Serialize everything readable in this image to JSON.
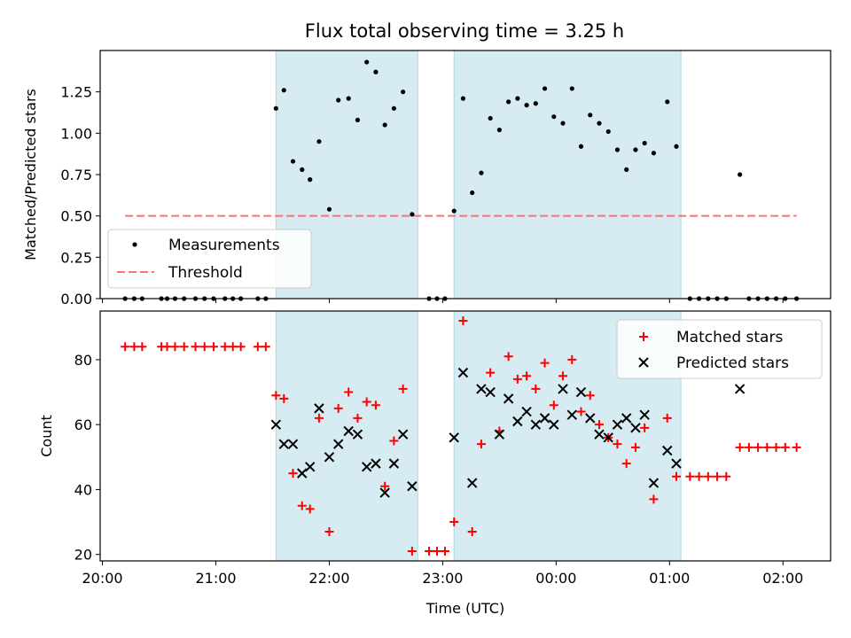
{
  "title": "Flux total observing time = 3.25 h",
  "colors": {
    "measurement": "#000000",
    "threshold": "#ff7070",
    "matched": "#ff0000",
    "predicted": "#000000",
    "span": "#add8e6"
  },
  "chart_data": [
    {
      "type": "scatter",
      "panel": "top",
      "title": "Flux total observing time = 3.25 h",
      "xlabel": "",
      "ylabel": "Matched/Predicted stars",
      "x_range_hours": [
        19.98,
        26.42
      ],
      "ylim": [
        0.0,
        1.5
      ],
      "yticks": [
        0.0,
        0.25,
        0.5,
        0.75,
        1.0,
        1.25
      ],
      "ytick_labels": [
        "0.00",
        "0.25",
        "0.50",
        "0.75",
        "1.00",
        "1.25"
      ],
      "xticks_hours": [
        20,
        21,
        22,
        23,
        24,
        25,
        26
      ],
      "xtick_labels": [],
      "shaded_spans_hours": [
        [
          21.53,
          22.78
        ],
        [
          23.1,
          25.1
        ]
      ],
      "legend": {
        "position": "lower-left",
        "entries": [
          "Measurements",
          "Threshold"
        ]
      },
      "threshold": {
        "name": "Threshold",
        "y": 0.5,
        "x_from": 20.2,
        "x_to": 26.12
      },
      "series": [
        {
          "name": "Measurements",
          "marker": "dot",
          "points": [
            [
              20.2,
              0
            ],
            [
              20.28,
              0
            ],
            [
              20.35,
              0
            ],
            [
              20.52,
              0
            ],
            [
              20.57,
              0
            ],
            [
              20.64,
              0
            ],
            [
              20.72,
              0
            ],
            [
              20.82,
              0
            ],
            [
              20.9,
              0
            ],
            [
              20.98,
              0
            ],
            [
              21.08,
              0
            ],
            [
              21.15,
              0
            ],
            [
              21.22,
              0
            ],
            [
              21.37,
              0
            ],
            [
              21.44,
              0
            ],
            [
              21.53,
              1.15
            ],
            [
              21.6,
              1.26
            ],
            [
              21.68,
              0.83
            ],
            [
              21.76,
              0.78
            ],
            [
              21.83,
              0.72
            ],
            [
              21.91,
              0.95
            ],
            [
              22.0,
              0.54
            ],
            [
              22.08,
              1.2
            ],
            [
              22.17,
              1.21
            ],
            [
              22.25,
              1.08
            ],
            [
              22.33,
              1.43
            ],
            [
              22.41,
              1.37
            ],
            [
              22.49,
              1.05
            ],
            [
              22.57,
              1.15
            ],
            [
              22.65,
              1.25
            ],
            [
              22.73,
              0.51
            ],
            [
              22.88,
              0
            ],
            [
              22.95,
              0
            ],
            [
              23.02,
              0
            ],
            [
              23.1,
              0.53
            ],
            [
              23.18,
              1.21
            ],
            [
              23.26,
              0.64
            ],
            [
              23.34,
              0.76
            ],
            [
              23.42,
              1.09
            ],
            [
              23.5,
              1.02
            ],
            [
              23.58,
              1.19
            ],
            [
              23.66,
              1.21
            ],
            [
              23.74,
              1.17
            ],
            [
              23.82,
              1.18
            ],
            [
              23.9,
              1.27
            ],
            [
              23.98,
              1.1
            ],
            [
              24.06,
              1.06
            ],
            [
              24.14,
              1.27
            ],
            [
              24.22,
              0.92
            ],
            [
              24.3,
              1.11
            ],
            [
              24.38,
              1.06
            ],
            [
              24.46,
              1.01
            ],
            [
              24.54,
              0.9
            ],
            [
              24.62,
              0.78
            ],
            [
              24.7,
              0.9
            ],
            [
              24.78,
              0.94
            ],
            [
              24.86,
              0.88
            ],
            [
              24.98,
              1.19
            ],
            [
              25.06,
              0.92
            ],
            [
              25.18,
              0
            ],
            [
              25.26,
              0
            ],
            [
              25.34,
              0
            ],
            [
              25.42,
              0
            ],
            [
              25.5,
              0
            ],
            [
              25.62,
              0.75
            ],
            [
              25.7,
              0
            ],
            [
              25.78,
              0
            ],
            [
              25.86,
              0
            ],
            [
              25.94,
              0
            ],
            [
              26.02,
              0
            ],
            [
              26.12,
              0
            ]
          ]
        }
      ]
    },
    {
      "type": "scatter",
      "panel": "bottom",
      "xlabel": "Time (UTC)",
      "ylabel": "Count",
      "x_range_hours": [
        19.98,
        26.42
      ],
      "ylim": [
        18,
        95
      ],
      "yticks": [
        20,
        40,
        60,
        80
      ],
      "ytick_labels": [
        "20",
        "40",
        "60",
        "80"
      ],
      "xticks_hours": [
        20,
        21,
        22,
        23,
        24,
        25,
        26
      ],
      "xtick_labels": [
        "20:00",
        "21:00",
        "22:00",
        "23:00",
        "00:00",
        "01:00",
        "02:00"
      ],
      "shaded_spans_hours": [
        [
          21.53,
          22.78
        ],
        [
          23.1,
          25.1
        ]
      ],
      "legend": {
        "position": "top-right",
        "entries": [
          "Matched stars",
          "Predicted stars"
        ]
      },
      "series": [
        {
          "name": "Matched stars",
          "marker": "plus",
          "points": [
            [
              20.2,
              84
            ],
            [
              20.28,
              84
            ],
            [
              20.35,
              84
            ],
            [
              20.52,
              84
            ],
            [
              20.57,
              84
            ],
            [
              20.64,
              84
            ],
            [
              20.72,
              84
            ],
            [
              20.82,
              84
            ],
            [
              20.9,
              84
            ],
            [
              20.98,
              84
            ],
            [
              21.08,
              84
            ],
            [
              21.15,
              84
            ],
            [
              21.22,
              84
            ],
            [
              21.37,
              84
            ],
            [
              21.44,
              84
            ],
            [
              21.53,
              69
            ],
            [
              21.6,
              68
            ],
            [
              21.68,
              45
            ],
            [
              21.76,
              35
            ],
            [
              21.83,
              34
            ],
            [
              21.91,
              62
            ],
            [
              22.0,
              27
            ],
            [
              22.08,
              65
            ],
            [
              22.17,
              70
            ],
            [
              22.25,
              62
            ],
            [
              22.33,
              67
            ],
            [
              22.41,
              66
            ],
            [
              22.49,
              41
            ],
            [
              22.57,
              55
            ],
            [
              22.65,
              71
            ],
            [
              22.73,
              21
            ],
            [
              22.88,
              21
            ],
            [
              22.95,
              21
            ],
            [
              23.02,
              21
            ],
            [
              23.1,
              30
            ],
            [
              23.18,
              92
            ],
            [
              23.26,
              27
            ],
            [
              23.34,
              54
            ],
            [
              23.42,
              76
            ],
            [
              23.5,
              58
            ],
            [
              23.58,
              81
            ],
            [
              23.66,
              74
            ],
            [
              23.74,
              75
            ],
            [
              23.82,
              71
            ],
            [
              23.9,
              79
            ],
            [
              23.98,
              66
            ],
            [
              24.06,
              75
            ],
            [
              24.14,
              80
            ],
            [
              24.22,
              64
            ],
            [
              24.3,
              69
            ],
            [
              24.38,
              60
            ],
            [
              24.46,
              56
            ],
            [
              24.54,
              54
            ],
            [
              24.62,
              48
            ],
            [
              24.7,
              53
            ],
            [
              24.78,
              59
            ],
            [
              24.86,
              37
            ],
            [
              24.98,
              62
            ],
            [
              25.06,
              44
            ],
            [
              25.18,
              44
            ],
            [
              25.26,
              44
            ],
            [
              25.34,
              44
            ],
            [
              25.42,
              44
            ],
            [
              25.5,
              44
            ],
            [
              25.62,
              53
            ],
            [
              25.7,
              53
            ],
            [
              25.78,
              53
            ],
            [
              25.86,
              53
            ],
            [
              25.94,
              53
            ],
            [
              26.02,
              53
            ],
            [
              26.12,
              53
            ]
          ]
        },
        {
          "name": "Predicted stars",
          "marker": "x",
          "points": [
            [
              21.53,
              60
            ],
            [
              21.6,
              54
            ],
            [
              21.68,
              54
            ],
            [
              21.76,
              45
            ],
            [
              21.83,
              47
            ],
            [
              21.91,
              65
            ],
            [
              22.0,
              50
            ],
            [
              22.08,
              54
            ],
            [
              22.17,
              58
            ],
            [
              22.25,
              57
            ],
            [
              22.33,
              47
            ],
            [
              22.41,
              48
            ],
            [
              22.49,
              39
            ],
            [
              22.57,
              48
            ],
            [
              22.65,
              57
            ],
            [
              22.73,
              41
            ],
            [
              23.1,
              56
            ],
            [
              23.18,
              76
            ],
            [
              23.26,
              42
            ],
            [
              23.34,
              71
            ],
            [
              23.42,
              70
            ],
            [
              23.5,
              57
            ],
            [
              23.58,
              68
            ],
            [
              23.66,
              61
            ],
            [
              23.74,
              64
            ],
            [
              23.82,
              60
            ],
            [
              23.9,
              62
            ],
            [
              23.98,
              60
            ],
            [
              24.06,
              71
            ],
            [
              24.14,
              63
            ],
            [
              24.22,
              70
            ],
            [
              24.3,
              62
            ],
            [
              24.38,
              57
            ],
            [
              24.46,
              56
            ],
            [
              24.54,
              60
            ],
            [
              24.62,
              62
            ],
            [
              24.7,
              59
            ],
            [
              24.78,
              63
            ],
            [
              24.86,
              42
            ],
            [
              24.98,
              52
            ],
            [
              25.06,
              48
            ],
            [
              25.62,
              71
            ]
          ]
        }
      ]
    }
  ]
}
